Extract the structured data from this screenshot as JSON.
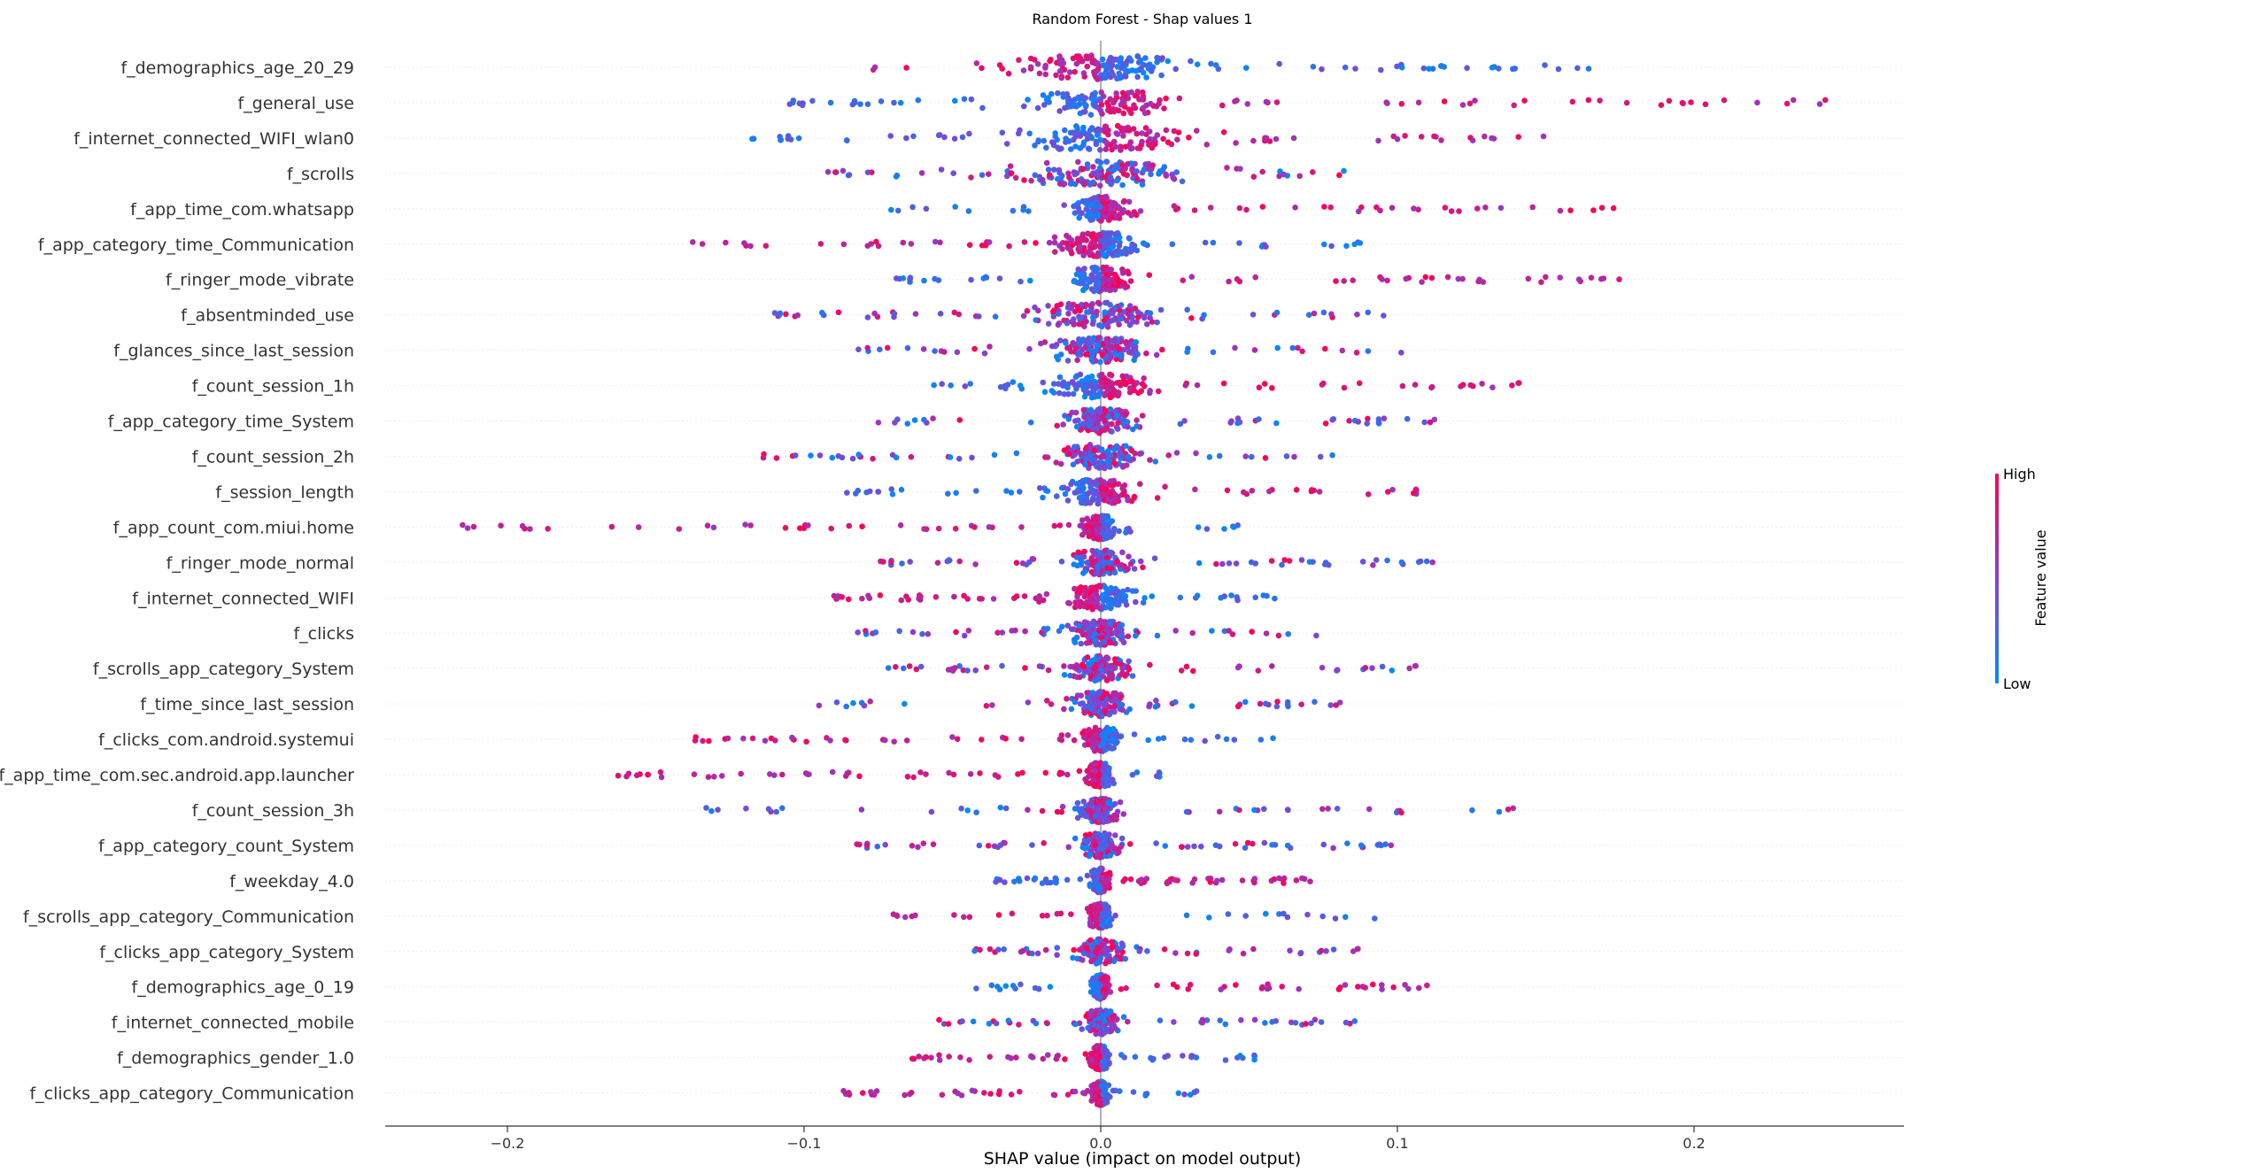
{
  "chart_data": {
    "type": "scatter",
    "subtype": "shap-beeswarm",
    "title": "Random Forest - Shap values 1",
    "xlabel": "SHAP value (impact on model output)",
    "ylabel": "",
    "xlim": [
      -0.24,
      0.27
    ],
    "xticks": [
      -0.2,
      -0.1,
      0.0,
      0.1,
      0.2
    ],
    "xtick_labels": [
      "−0.2",
      "−0.1",
      "0.0",
      "0.1",
      "0.2"
    ],
    "grid": false,
    "colorbar": {
      "high_label": "High",
      "low_label": "Low",
      "title": "Feature value",
      "high_color": "#ff0052",
      "low_color": "#008bfb"
    },
    "features": [
      {
        "name": "f_demographics_age_20_29",
        "min": -0.085,
        "max": 0.165,
        "core": 0.04,
        "high_side": "neg"
      },
      {
        "name": "f_general_use",
        "min": -0.11,
        "max": 0.248,
        "core": 0.035,
        "high_side": "pos"
      },
      {
        "name": "f_internet_connected_WIFI_wlan0",
        "min": -0.118,
        "max": 0.15,
        "core": 0.04,
        "high_side": "pos"
      },
      {
        "name": "f_scrolls",
        "min": -0.095,
        "max": 0.095,
        "core": 0.04,
        "high_side": "mixed"
      },
      {
        "name": "f_app_time_com.whatsapp",
        "min": -0.075,
        "max": 0.178,
        "core": 0.012,
        "high_side": "pos"
      },
      {
        "name": "f_app_category_time_Communication",
        "min": -0.14,
        "max": 0.09,
        "core": 0.02,
        "high_side": "neg"
      },
      {
        "name": "f_ringer_mode_vibrate",
        "min": -0.07,
        "max": 0.175,
        "core": 0.015,
        "high_side": "pos"
      },
      {
        "name": "f_absentminded_use",
        "min": -0.11,
        "max": 0.1,
        "core": 0.03,
        "high_side": "mixed"
      },
      {
        "name": "f_glances_since_last_session",
        "min": -0.083,
        "max": 0.11,
        "core": 0.025,
        "high_side": "mixed"
      },
      {
        "name": "f_count_session_1h",
        "min": -0.06,
        "max": 0.143,
        "core": 0.02,
        "high_side": "pos"
      },
      {
        "name": "f_app_category_time_System",
        "min": -0.075,
        "max": 0.115,
        "core": 0.015,
        "high_side": "mixed"
      },
      {
        "name": "f_count_session_2h",
        "min": -0.117,
        "max": 0.08,
        "core": 0.02,
        "high_side": "mixed"
      },
      {
        "name": "f_session_length",
        "min": -0.088,
        "max": 0.115,
        "core": 0.02,
        "high_side": "pos"
      },
      {
        "name": "f_app_count_com.miui.home",
        "min": -0.218,
        "max": 0.05,
        "core": 0.008,
        "high_side": "neg"
      },
      {
        "name": "f_ringer_mode_normal",
        "min": -0.075,
        "max": 0.112,
        "core": 0.015,
        "high_side": "mixed"
      },
      {
        "name": "f_internet_connected_WIFI",
        "min": -0.09,
        "max": 0.062,
        "core": 0.015,
        "high_side": "neg"
      },
      {
        "name": "f_clicks",
        "min": -0.083,
        "max": 0.08,
        "core": 0.015,
        "high_side": "mixed"
      },
      {
        "name": "f_scrolls_app_category_System",
        "min": -0.075,
        "max": 0.108,
        "core": 0.013,
        "high_side": "mixed"
      },
      {
        "name": "f_time_since_last_session",
        "min": -0.095,
        "max": 0.083,
        "core": 0.012,
        "high_side": "mixed"
      },
      {
        "name": "f_clicks_com.android.systemui",
        "min": -0.14,
        "max": 0.06,
        "core": 0.01,
        "high_side": "neg"
      },
      {
        "name": "f_app_time_com.sec.android.app.launcher",
        "min": -0.165,
        "max": 0.028,
        "core": 0.007,
        "high_side": "neg"
      },
      {
        "name": "f_count_session_3h",
        "min": -0.136,
        "max": 0.143,
        "core": 0.01,
        "high_side": "mixed"
      },
      {
        "name": "f_app_category_count_System",
        "min": -0.083,
        "max": 0.098,
        "core": 0.01,
        "high_side": "mixed"
      },
      {
        "name": "f_weekday_4.0",
        "min": -0.036,
        "max": 0.073,
        "core": 0.005,
        "high_side": "pos"
      },
      {
        "name": "f_scrolls_app_category_Communication",
        "min": -0.07,
        "max": 0.1,
        "core": 0.006,
        "high_side": "neg"
      },
      {
        "name": "f_clicks_app_category_System",
        "min": -0.045,
        "max": 0.088,
        "core": 0.01,
        "high_side": "mixed"
      },
      {
        "name": "f_demographics_age_0_19",
        "min": -0.042,
        "max": 0.112,
        "core": 0.004,
        "high_side": "pos"
      },
      {
        "name": "f_internet_connected_mobile",
        "min": -0.057,
        "max": 0.087,
        "core": 0.008,
        "high_side": "mixed"
      },
      {
        "name": "f_demographics_gender_1.0",
        "min": -0.065,
        "max": 0.057,
        "core": 0.005,
        "high_side": "neg"
      },
      {
        "name": "f_clicks_app_category_Communication",
        "min": -0.088,
        "max": 0.034,
        "core": 0.004,
        "high_side": "neg"
      }
    ]
  }
}
